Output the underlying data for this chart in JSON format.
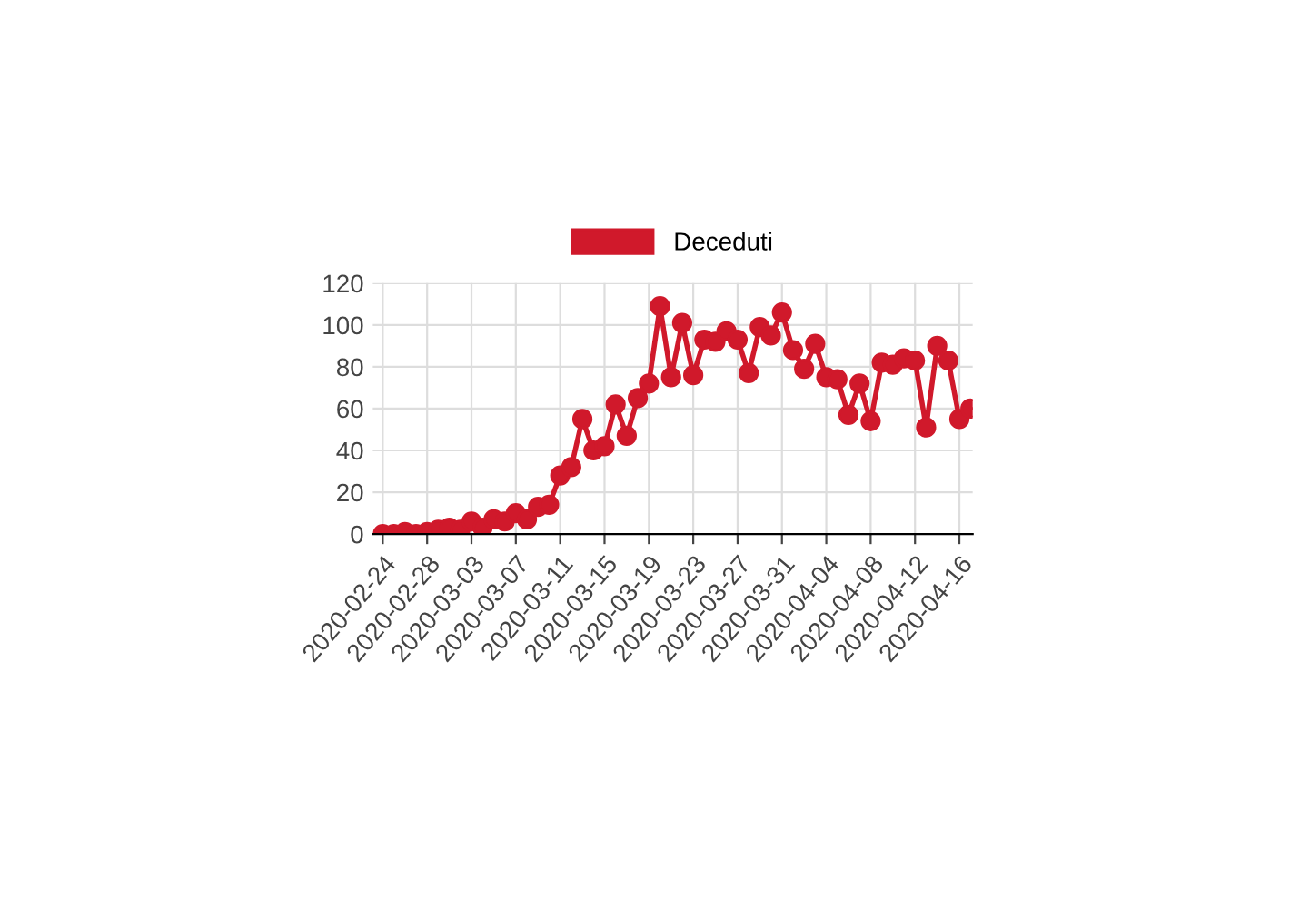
{
  "chart_data": {
    "type": "line",
    "categories": [
      "2020-02-24",
      null,
      null,
      null,
      "2020-02-28",
      null,
      null,
      null,
      "2020-03-03",
      null,
      null,
      null,
      "2020-03-07",
      null,
      null,
      null,
      "2020-03-11",
      null,
      null,
      null,
      "2020-03-15",
      null,
      null,
      null,
      "2020-03-19",
      null,
      null,
      null,
      "2020-03-23",
      null,
      null,
      null,
      "2020-03-27",
      null,
      null,
      null,
      "2020-03-31",
      null,
      null,
      null,
      "2020-04-04",
      null,
      null,
      null,
      "2020-04-08",
      null,
      null,
      null,
      "2020-04-12",
      null,
      null,
      null,
      "2020-04-16",
      null
    ],
    "series": [
      {
        "name": "Deceduti",
        "color": "#d0192b",
        "values": [
          0,
          0,
          1,
          0,
          1,
          2,
          3,
          2,
          6,
          3,
          7,
          6,
          10,
          7,
          13,
          14,
          28,
          32,
          55,
          40,
          42,
          62,
          47,
          65,
          72,
          109,
          75,
          101,
          76,
          93,
          92,
          97,
          93,
          77,
          99,
          95,
          106,
          88,
          79,
          91,
          75,
          74,
          57,
          72,
          54,
          82,
          81,
          84,
          83,
          51,
          90,
          83,
          55,
          60
        ]
      }
    ],
    "ylim": [
      0,
      120
    ],
    "yticks": [
      0,
      20,
      40,
      60,
      80,
      100,
      120
    ],
    "grid": true,
    "legend": "top",
    "marker": "circle",
    "line_style": "solid"
  }
}
